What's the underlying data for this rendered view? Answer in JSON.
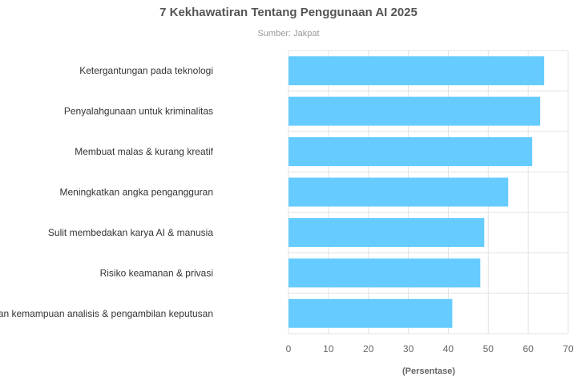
{
  "chart_data": {
    "type": "bar",
    "orientation": "horizontal",
    "title": "7 Kekhawatiran Tentang Penggunaan AI 2025",
    "subtitle": "Sumber: Jakpat",
    "xlabel": "(Persentase)",
    "ylabel": "",
    "categories": [
      "Ketergantungan pada teknologi",
      "Penyalahgunaan untuk kriminalitas",
      "Membuat malas & kurang kreatif",
      "Meningkatkan angka pengangguran",
      "Sulit membedakan karya AI & manusia",
      "Risiko keamanan & privasi",
      "Menurunkan kemampuan analisis & pengambilan keputusan"
    ],
    "values": [
      64,
      63,
      61,
      55,
      49,
      48,
      41
    ],
    "xlim": [
      0,
      70
    ],
    "xticks": [
      0,
      10,
      20,
      30,
      40,
      50,
      60,
      70
    ],
    "grid": true,
    "legend": "none",
    "colors": {
      "bar": "#66ccff",
      "grid": "#e3e3e3",
      "title": "#555555",
      "subtitle": "#999999",
      "label": "#333333",
      "tick": "#666666"
    }
  }
}
